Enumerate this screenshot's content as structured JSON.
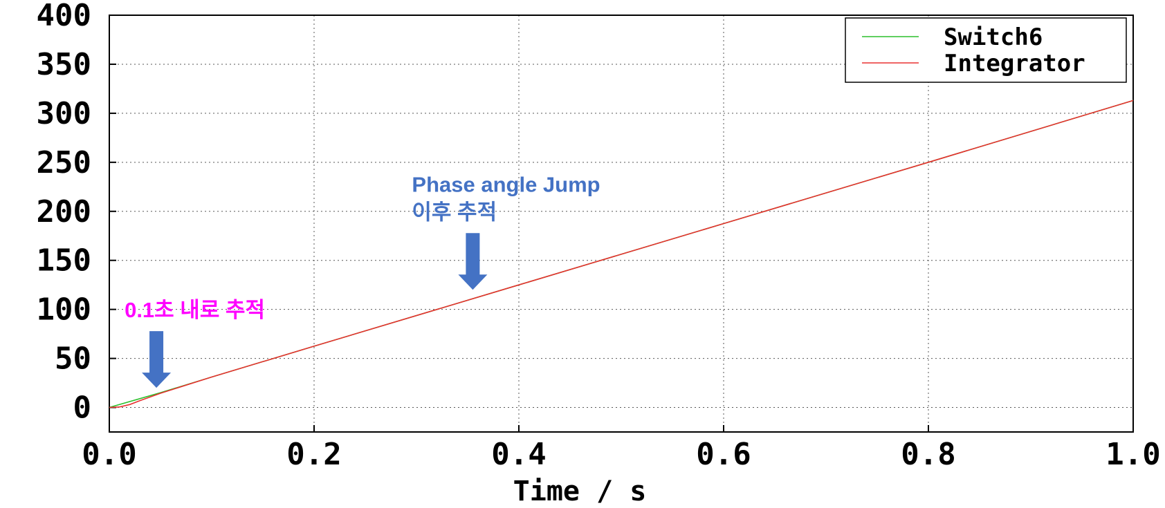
{
  "chart_data": {
    "type": "line",
    "title": "",
    "xlabel": "Time / s",
    "ylabel": "",
    "xlim": [
      0.0,
      1.0
    ],
    "ylim": [
      -25,
      400
    ],
    "x_ticks": [
      0.0,
      0.2,
      0.4,
      0.6,
      0.8,
      1.0
    ],
    "x_tick_labels": [
      "0.0",
      "0.2",
      "0.4",
      "0.6",
      "0.8",
      "1.0"
    ],
    "y_ticks": [
      0,
      50,
      100,
      150,
      200,
      250,
      300,
      350,
      400
    ],
    "y_tick_labels": [
      "0",
      "50",
      "100",
      "150",
      "200",
      "250",
      "300",
      "350",
      "400"
    ],
    "grid": true,
    "legend_position": "top-right",
    "series": [
      {
        "name": "Switch6",
        "color": "#2bbf2b",
        "x": [
          0.0,
          0.05,
          0.1,
          0.2,
          0.4,
          0.6,
          0.8,
          1.0
        ],
        "y": [
          0,
          15,
          31,
          62.5,
          125,
          187.5,
          250,
          313
        ]
      },
      {
        "name": "Integrator",
        "color": "#e83030",
        "x": [
          0.0,
          0.01,
          0.02,
          0.03,
          0.05,
          0.1,
          0.2,
          0.4,
          0.6,
          0.8,
          1.0
        ],
        "y": [
          0,
          0.5,
          3,
          7,
          14.5,
          31,
          62.5,
          125,
          187.5,
          250,
          313
        ]
      }
    ],
    "annotations": [
      {
        "id": "early",
        "lines": [
          "0.1초 내로 추적"
        ],
        "color": "#ff00ff",
        "arrow_color": "#4472c4",
        "arrow_x": 0.046,
        "arrow_tip_y": 20
      },
      {
        "id": "jump",
        "lines": [
          "Phase angle Jump",
          "이후 추적"
        ],
        "color": "#4472c4",
        "arrow_color": "#4472c4",
        "arrow_x": 0.355,
        "arrow_tip_y": 120
      }
    ]
  }
}
